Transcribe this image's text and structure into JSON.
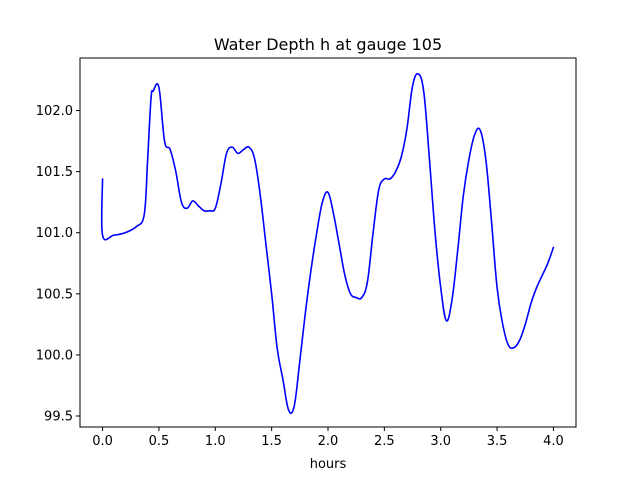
{
  "chart_data": {
    "type": "line",
    "title": "Water Depth h at gauge 105",
    "xlabel": "hours",
    "ylabel": "",
    "xlim": [
      -0.2,
      4.2
    ],
    "ylim": [
      99.41,
      102.43
    ],
    "xticks": [
      0.0,
      0.5,
      1.0,
      1.5,
      2.0,
      2.5,
      3.0,
      3.5,
      4.0
    ],
    "xtick_labels": [
      "0.0",
      "0.5",
      "1.0",
      "1.5",
      "2.0",
      "2.5",
      "3.0",
      "3.5",
      "4.0"
    ],
    "yticks": [
      99.5,
      100.0,
      100.5,
      101.0,
      101.5,
      102.0
    ],
    "ytick_labels": [
      "99.5",
      "100.0",
      "100.5",
      "101.0",
      "101.5",
      "102.0"
    ],
    "grid": false,
    "legend": "none",
    "series": [
      {
        "color": "#0000ff",
        "x": [
          0.0,
          0.0,
          0.1,
          0.2,
          0.3,
          0.37,
          0.4,
          0.43,
          0.45,
          0.5,
          0.55,
          0.6,
          0.65,
          0.7,
          0.75,
          0.8,
          0.85,
          0.9,
          0.95,
          1.0,
          1.05,
          1.1,
          1.15,
          1.2,
          1.25,
          1.3,
          1.35,
          1.4,
          1.45,
          1.5,
          1.55,
          1.6,
          1.65,
          1.7,
          1.75,
          1.8,
          1.85,
          1.9,
          1.95,
          2.0,
          2.05,
          2.1,
          2.15,
          2.2,
          2.25,
          2.3,
          2.35,
          2.4,
          2.45,
          2.5,
          2.55,
          2.6,
          2.65,
          2.7,
          2.75,
          2.8,
          2.85,
          2.9,
          2.95,
          3.0,
          3.05,
          3.1,
          3.15,
          3.2,
          3.25,
          3.3,
          3.35,
          3.4,
          3.45,
          3.5,
          3.55,
          3.6,
          3.65,
          3.7,
          3.75,
          3.8,
          3.85,
          3.9,
          3.95,
          4.0
        ],
        "y": [
          101.44,
          100.98,
          100.98,
          101.0,
          101.05,
          101.15,
          101.6,
          102.1,
          102.16,
          102.19,
          101.75,
          101.68,
          101.5,
          101.25,
          101.2,
          101.26,
          101.22,
          101.18,
          101.18,
          101.2,
          101.4,
          101.65,
          101.7,
          101.65,
          101.68,
          101.7,
          101.6,
          101.3,
          100.9,
          100.5,
          100.05,
          99.8,
          99.55,
          99.58,
          99.95,
          100.35,
          100.7,
          101.0,
          101.25,
          101.33,
          101.15,
          100.9,
          100.65,
          100.5,
          100.47,
          100.47,
          100.6,
          101.0,
          101.35,
          101.44,
          101.44,
          101.5,
          101.62,
          101.85,
          102.2,
          102.3,
          102.15,
          101.6,
          101.0,
          100.55,
          100.28,
          100.45,
          100.85,
          101.3,
          101.6,
          101.8,
          101.84,
          101.6,
          101.1,
          100.55,
          100.25,
          100.08,
          100.06,
          100.12,
          100.25,
          100.42,
          100.55,
          100.65,
          100.75,
          100.88
        ]
      }
    ]
  }
}
